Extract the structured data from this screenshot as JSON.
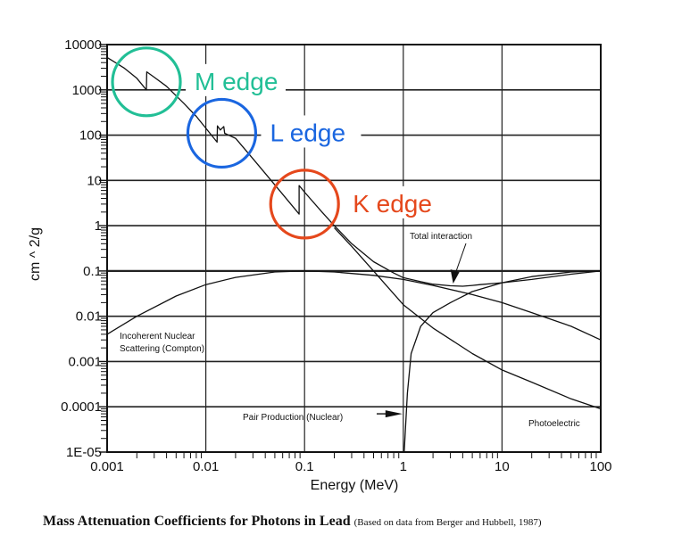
{
  "chart_data": {
    "type": "line",
    "title": "Mass Attenuation Coefficients for Photons in Lead",
    "subtitle": "(Based on data from Berger and Hubbell, 1987)",
    "xlabel": "Energy (MeV)",
    "ylabel": "cm ^ 2/g",
    "xscale": "log",
    "yscale": "log",
    "xlim": [
      0.001,
      100
    ],
    "ylim": [
      1e-05,
      10000
    ],
    "grid": true,
    "x_tick_labels": [
      "0.001",
      "0.01",
      "0.1",
      "1",
      "10",
      "100"
    ],
    "x_tick_values": [
      0.001,
      0.01,
      0.1,
      1,
      10,
      100
    ],
    "y_tick_labels": [
      "10000",
      "1000",
      "100",
      "10",
      "1",
      "0.1",
      "0.01",
      "0.001",
      "0.0001",
      "1E-05"
    ],
    "y_tick_values": [
      10000,
      1000,
      100,
      10,
      1,
      0.1,
      0.01,
      0.001,
      0.0001,
      1e-05
    ],
    "series": [
      {
        "name": "Total interaction",
        "x": [
          0.001,
          0.0015,
          0.002,
          0.0025,
          0.00252,
          0.003,
          0.004,
          0.006,
          0.008,
          0.013,
          0.0131,
          0.014,
          0.0152,
          0.0155,
          0.02,
          0.03,
          0.05,
          0.088,
          0.0881,
          0.1,
          0.15,
          0.2,
          0.3,
          0.5,
          0.8,
          1,
          1.5,
          2,
          3,
          4,
          5,
          6,
          10,
          20,
          50,
          100
        ],
        "y": [
          5200,
          3000,
          1800,
          1000,
          2500,
          1900,
          1200,
          500,
          260,
          70,
          160,
          130,
          155,
          110,
          85,
          30,
          8,
          1.8,
          7.7,
          5.5,
          2,
          1,
          0.4,
          0.16,
          0.09,
          0.071,
          0.058,
          0.051,
          0.047,
          0.046,
          0.048,
          0.05,
          0.055,
          0.065,
          0.085,
          0.1
        ]
      },
      {
        "name": "Photoelectric",
        "x": [
          0.2,
          0.3,
          0.5,
          1,
          2,
          5,
          10,
          20,
          50,
          100
        ],
        "y": [
          0.9,
          0.35,
          0.1,
          0.018,
          0.0055,
          0.0015,
          0.00065,
          0.00035,
          0.00015,
          9e-05
        ]
      },
      {
        "name": "Incoherent Nuclear Scattering (Compton)",
        "x": [
          0.001,
          0.002,
          0.005,
          0.01,
          0.02,
          0.05,
          0.1,
          0.2,
          0.5,
          1,
          2,
          5,
          10,
          20,
          50,
          100
        ],
        "y": [
          0.004,
          0.01,
          0.028,
          0.05,
          0.072,
          0.095,
          0.1,
          0.095,
          0.08,
          0.065,
          0.048,
          0.03,
          0.02,
          0.012,
          0.006,
          0.003
        ]
      },
      {
        "name": "Pair Production (Nuclear)",
        "x": [
          1.02,
          1.1,
          1.2,
          1.5,
          2,
          3,
          5,
          10,
          20,
          50,
          100
        ],
        "y": [
          1e-05,
          0.0002,
          0.0015,
          0.006,
          0.012,
          0.02,
          0.035,
          0.055,
          0.075,
          0.095,
          0.1
        ]
      }
    ],
    "annotations": [
      {
        "text": "Total interaction",
        "arrow_to": [
          3.2,
          0.048
        ]
      },
      {
        "text": "Incoherent Nuclear",
        "text2": "Scattering (Compton)"
      },
      {
        "text": "Pair Production (Nuclear)",
        "arrow_to": [
          1.0,
          7e-05
        ]
      },
      {
        "text": "Photoelectric"
      }
    ],
    "edges": [
      {
        "label": "M edge",
        "energy": 0.0025,
        "value": 1500,
        "color": "#22bf96"
      },
      {
        "label": "L edge",
        "energy": 0.0145,
        "value": 110,
        "color": "#1a66e0"
      },
      {
        "label": "K edge",
        "energy": 0.1,
        "value": 3,
        "color": "#e5481c"
      }
    ]
  }
}
